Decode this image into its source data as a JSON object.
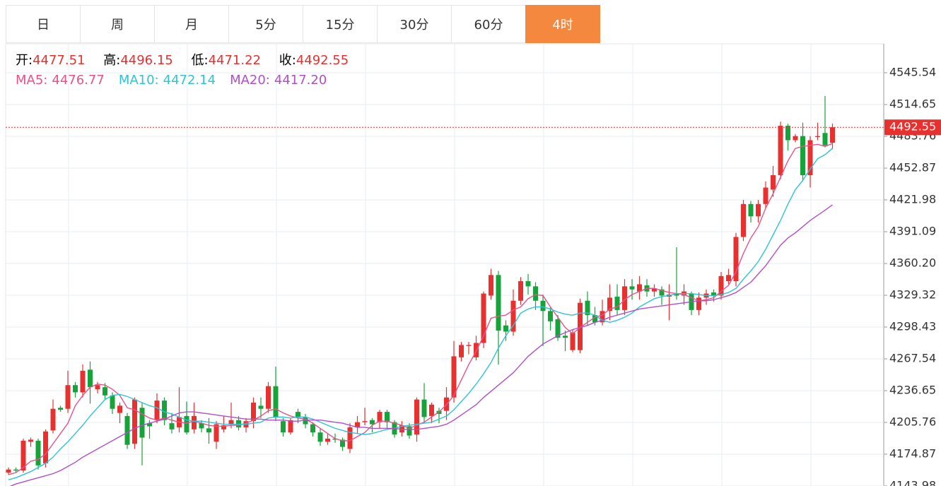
{
  "tabs": [
    "日",
    "周",
    "月",
    "5分",
    "15分",
    "30分",
    "60分",
    "4时"
  ],
  "active_tab": 7,
  "chart_data": {
    "type": "candlestick",
    "ohlc_labels": [
      "开:",
      "高:",
      "低:",
      "收:"
    ],
    "up_color": "#e8312f",
    "down_color": "#16a33a",
    "grid": true,
    "ylim": [
      4143.98,
      4573.68
    ],
    "yticks": [
      4143.98,
      4174.87,
      4205.76,
      4236.65,
      4267.54,
      4298.43,
      4329.32,
      {
        "value": 4360.2,
        "label": "4360.20"
      },
      4391.09,
      4421.98,
      4452.87,
      4483.76,
      4514.65,
      4545.54
    ],
    "open": [
      4157,
      4160,
      4159,
      4187,
      4188,
      4166,
      4198,
      4220,
      4219,
      4242,
      4235,
      4257,
      4238,
      4240,
      4232,
      4215,
      4212,
      4185,
      4220,
      4205,
      4208,
      4227,
      4205,
      4201,
      4212,
      4199,
      4205,
      4200,
      4187,
      4199,
      4204,
      4208,
      4201,
      4207,
      4222,
      4219,
      4241,
      4207,
      4196,
      4216,
      4211,
      4204,
      4196,
      4187,
      4190,
      4189,
      4180,
      4201,
      4206,
      4208,
      4206,
      4216,
      4206,
      4196,
      4202,
      4194,
      4228,
      4212,
      4217,
      4217,
      4230,
      4269,
      4280,
      4269,
      4283,
      4329,
      4349,
      4300,
      4294,
      4324,
      4343,
      4338,
      4324,
      4314,
      4306,
      4290,
      4276,
      4276,
      4324,
      4310,
      4303,
      4314,
      4328,
      4315,
      4338,
      4333,
      4339,
      4333,
      4335,
      4328,
      4331,
      4329,
      4331,
      4315,
      4327,
      4332,
      4329,
      4343,
      4343,
      4386,
      4418,
      4406,
      4418,
      4432,
      4446,
      4494,
      4480,
      4484,
      4446,
      4483,
      4487,
      4477.51
    ],
    "high": [
      4162,
      4162,
      4190,
      4191,
      4190,
      4199,
      4228,
      4222,
      4256,
      4245,
      4262,
      4265,
      4245,
      4244,
      4235,
      4225,
      4215,
      4230,
      4225,
      4208,
      4234,
      4230,
      4215,
      4240,
      4226,
      4225,
      4208,
      4210,
      4207,
      4212,
      4225,
      4212,
      4210,
      4230,
      4230,
      4245,
      4260,
      4210,
      4210,
      4219,
      4214,
      4206,
      4200,
      4195,
      4195,
      4191,
      4205,
      4212,
      4220,
      4210,
      4218,
      4218,
      4208,
      4207,
      4205,
      4230,
      4244,
      4225,
      4220,
      4240,
      4285,
      4284,
      4284,
      4290,
      4333,
      4355,
      4353,
      4305,
      4335,
      4347,
      4350,
      4342,
      4330,
      4318,
      4310,
      4295,
      4296,
      4326,
      4333,
      4318,
      4325,
      4340,
      4340,
      4345,
      4345,
      4348,
      4345,
      4340,
      4338,
      4340,
      4376,
      4340,
      4333,
      4332,
      4335,
      4335,
      4352,
      4355,
      4390,
      4422,
      4421,
      4422,
      4440,
      4455,
      4498,
      4496,
      4486,
      4497,
      4484,
      4497,
      4523,
      4496.15
    ],
    "low": [
      4155,
      4157,
      4157,
      4182,
      4160,
      4162,
      4195,
      4216,
      4215,
      4230,
      4230,
      4224,
      4234,
      4228,
      4214,
      4205,
      4180,
      4180,
      4164,
      4190,
      4205,
      4203,
      4195,
      4196,
      4194,
      4195,
      4196,
      4185,
      4180,
      4196,
      4200,
      4198,
      4196,
      4200,
      4210,
      4215,
      4207,
      4192,
      4194,
      4205,
      4200,
      4192,
      4183,
      4184,
      4186,
      4178,
      4176,
      4195,
      4203,
      4196,
      4200,
      4200,
      4191,
      4192,
      4190,
      4187,
      4205,
      4205,
      4205,
      4208,
      4225,
      4265,
      4272,
      4266,
      4278,
      4325,
      4262,
      4285,
      4290,
      4320,
      4330,
      4315,
      4280,
      4295,
      4285,
      4275,
      4274,
      4273,
      4300,
      4300,
      4300,
      4305,
      4310,
      4310,
      4325,
      4325,
      4328,
      4328,
      4320,
      4305,
      4325,
      4320,
      4310,
      4310,
      4320,
      4323,
      4325,
      4340,
      4338,
      4382,
      4400,
      4400,
      4414,
      4425,
      4442,
      4470,
      4478,
      4440,
      4434,
      4480,
      4473,
      4471.22
    ],
    "close": [
      4160,
      4159,
      4188,
      4189,
      4164,
      4197,
      4219,
      4218,
      4242,
      4235,
      4256,
      4240,
      4242,
      4232,
      4219,
      4222,
      4184,
      4228,
      4191,
      4202,
      4227,
      4208,
      4199,
      4211,
      4196,
      4212,
      4200,
      4196,
      4204,
      4203,
      4208,
      4201,
      4207,
      4225,
      4219,
      4241,
      4211,
      4196,
      4208,
      4211,
      4204,
      4196,
      4187,
      4190,
      4189,
      4182,
      4201,
      4206,
      4207,
      4204,
      4216,
      4206,
      4194,
      4203,
      4193,
      4228,
      4211,
      4223,
      4214,
      4230,
      4270,
      4281,
      4281,
      4283,
      4331,
      4349,
      4295,
      4294,
      4324,
      4343,
      4338,
      4324,
      4314,
      4304,
      4288,
      4288,
      4293,
      4322,
      4310,
      4303,
      4314,
      4327,
      4315,
      4338,
      4335,
      4340,
      4333,
      4336,
      4329,
      4330,
      4329,
      4333,
      4315,
      4327,
      4331,
      4329,
      4348,
      4349,
      4386,
      4418,
      4406,
      4418,
      4434,
      4446,
      4494,
      4480,
      4484,
      4446,
      4480,
      4484,
      4475,
      4492.55
    ],
    "ma": [
      {
        "name": "MA5:",
        "color": "#e8528a",
        "values": [
          4155,
          4157,
          4162,
          4168,
          4170,
          4175,
          4185,
          4195,
          4205,
          4222,
          4232,
          4240,
          4243,
          4242,
          4238,
          4232,
          4220,
          4218,
          4214,
          4210,
          4208,
          4210,
          4208,
          4206,
          4205,
          4207,
          4205,
          4203,
          4202,
          4202,
          4203,
          4203,
          4205,
          4208,
          4212,
          4217,
          4219,
          4215,
          4212,
          4210,
          4209,
          4205,
          4200,
          4195,
          4190,
          4188,
          4188,
          4192,
          4196,
          4203,
          4207,
          4207,
          4205,
          4203,
          4200,
          4203,
          4206,
          4211,
          4216,
          4223,
          4232,
          4247,
          4262,
          4275,
          4290,
          4307,
          4309,
          4310,
          4315,
          4318,
          4326,
          4330,
          4329,
          4318,
          4308,
          4298,
          4292,
          4298,
          4303,
          4308,
          4310,
          4316,
          4318,
          4325,
          4330,
          4333,
          4336,
          4336,
          4334,
          4332,
          4331,
          4330,
          4327,
          4324,
          4325,
          4327,
          4333,
          4339,
          4352,
          4370,
          4385,
          4396,
          4414,
          4428,
          4444,
          4460,
          4472,
          4474,
          4475,
          4476,
          4474,
          4476.77
        ]
      },
      {
        "name": "MA10:",
        "color": "#2ec4d6",
        "values": [
          4150,
          4152,
          4155,
          4158,
          4162,
          4166,
          4172,
          4180,
          4187,
          4195,
          4203,
          4212,
          4220,
          4228,
          4232,
          4233,
          4231,
          4228,
          4225,
          4222,
          4220,
          4216,
          4214,
          4211,
          4208,
          4207,
          4207,
          4206,
          4205,
          4204,
          4204,
          4204,
          4204,
          4205,
          4206,
          4210,
          4211,
          4211,
          4210,
          4211,
          4211,
          4209,
          4206,
          4203,
          4200,
          4198,
          4196,
          4195,
          4194,
          4195,
          4197,
          4199,
          4200,
          4202,
          4203,
          4204,
          4205,
          4206,
          4209,
          4212,
          4218,
          4226,
          4234,
          4243,
          4253,
          4264,
          4278,
          4290,
          4300,
          4312,
          4316,
          4318,
          4318,
          4316,
          4313,
          4311,
          4310,
          4312,
          4312,
          4310,
          4305,
          4303,
          4305,
          4308,
          4312,
          4318,
          4322,
          4326,
          4328,
          4329,
          4331,
          4331,
          4331,
          4330,
          4329,
          4329,
          4330,
          4332,
          4336,
          4345,
          4353,
          4362,
          4374,
          4388,
          4402,
          4418,
          4432,
          4441,
          4452,
          4462,
          4466,
          4472.14
        ]
      },
      {
        "name": "MA20:",
        "color": "#b04fc8",
        "values": [
          4143,
          4146,
          4148,
          4150,
          4152,
          4154,
          4156,
          4159,
          4163,
          4167,
          4172,
          4176,
          4180,
          4184,
          4188,
          4192,
          4196,
          4200,
          4203,
          4205,
          4207,
          4209,
          4212,
          4215,
          4216,
          4216,
          4215,
          4214,
          4213,
          4212,
          4211,
          4210,
          4209,
          4209,
          4209,
          4208,
          4208,
          4208,
          4207,
          4207,
          4208,
          4208,
          4208,
          4207,
          4206,
          4205,
          4203,
          4201,
          4201,
          4200,
          4200,
          4200,
          4200,
          4199,
          4199,
          4199,
          4200,
          4201,
          4202,
          4204,
          4208,
          4213,
          4218,
          4223,
          4230,
          4236,
          4242,
          4248,
          4254,
          4262,
          4270,
          4276,
          4282,
          4286,
          4290,
          4293,
          4296,
          4298,
          4300,
          4303,
          4305,
          4308,
          4310,
          4312,
          4314,
          4316,
          4317,
          4318,
          4319,
          4320,
          4321,
          4322,
          4323,
          4324,
          4324,
          4325,
          4327,
          4329,
          4332,
          4337,
          4342,
          4350,
          4358,
          4368,
          4378,
          4385,
          4390,
          4396,
          4402,
          4407,
          4412,
          4417.2
        ],
        "value_labels": [
          null,
          null,
          null,
          null,
          null,
          null,
          null,
          null,
          null,
          null,
          null,
          null,
          null,
          null,
          null,
          null,
          null,
          null,
          null,
          null,
          null,
          null,
          null,
          null,
          null,
          null,
          null,
          null,
          null,
          null,
          null,
          null,
          null,
          null,
          null,
          null,
          null,
          null,
          null,
          null,
          null,
          null,
          null,
          null,
          null,
          null,
          null,
          null,
          null,
          null,
          null,
          null,
          null,
          null,
          null,
          null,
          null,
          null,
          null,
          null,
          null,
          null,
          null,
          null,
          null,
          null,
          null,
          null,
          null,
          null,
          null,
          null,
          null,
          null,
          null,
          null,
          null,
          null,
          null,
          null,
          null,
          null,
          null,
          null,
          null,
          null,
          null,
          null,
          null,
          null,
          null,
          null,
          null,
          null,
          null,
          null,
          null,
          null,
          null,
          null,
          null,
          null,
          null,
          null,
          null,
          null,
          null,
          null,
          null,
          null,
          null,
          "4417.20"
        ]
      }
    ]
  }
}
